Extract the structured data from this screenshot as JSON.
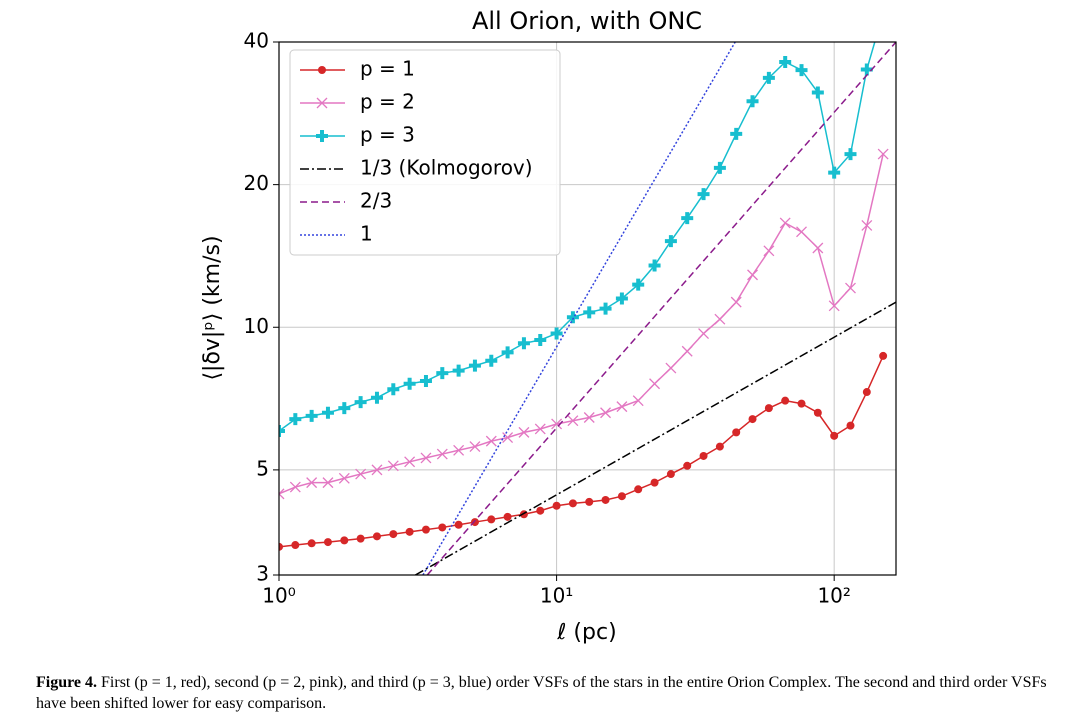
{
  "chart_data": {
    "type": "line",
    "title": "All Orion, with ONC",
    "xlabel": "ℓ (pc)",
    "ylabel": "⟨|δv|ᵖ⟩ (km/s)",
    "xscale": "log",
    "yscale": "log",
    "grid": true,
    "legend": "upper left",
    "xlim": [
      1,
      167
    ],
    "ylim": [
      3,
      40
    ],
    "xticks": [
      {
        "value": 1,
        "label": "10⁰"
      },
      {
        "value": 10,
        "label": "10¹"
      },
      {
        "value": 100,
        "label": "10²"
      }
    ],
    "yticks": [
      3,
      5,
      10,
      20,
      40
    ],
    "series": [
      {
        "name": "p = 1",
        "color": "#d62728",
        "marker": "o",
        "linestyle": "solid",
        "x": [
          1.0,
          1.145,
          1.311,
          1.501,
          1.719,
          1.968,
          2.254,
          2.581,
          2.955,
          3.384,
          3.875,
          4.437,
          5.08,
          5.818,
          6.661,
          7.627,
          8.733,
          10.0,
          11.45,
          13.11,
          15.01,
          17.19,
          19.68,
          22.54,
          25.81,
          29.55,
          33.84,
          38.75,
          44.37,
          50.8,
          58.18,
          66.61,
          76.27,
          87.33,
          100,
          114.5,
          131.1,
          150.1
        ],
        "values": [
          3.44,
          3.47,
          3.5,
          3.52,
          3.55,
          3.58,
          3.62,
          3.66,
          3.7,
          3.74,
          3.78,
          3.83,
          3.88,
          3.93,
          3.98,
          4.03,
          4.1,
          4.2,
          4.25,
          4.28,
          4.32,
          4.4,
          4.55,
          4.7,
          4.9,
          5.1,
          5.35,
          5.6,
          6.0,
          6.4,
          6.75,
          7.0,
          6.9,
          6.6,
          5.9,
          6.2,
          7.3,
          8.7
        ]
      },
      {
        "name": "p = 2",
        "color": "#e377c2",
        "marker": "x",
        "linestyle": "solid",
        "x": [
          1.0,
          1.145,
          1.311,
          1.501,
          1.719,
          1.968,
          2.254,
          2.581,
          2.955,
          3.384,
          3.875,
          4.437,
          5.08,
          5.818,
          6.661,
          7.627,
          8.733,
          10.0,
          11.45,
          13.11,
          15.01,
          17.19,
          19.68,
          22.54,
          25.81,
          29.55,
          33.84,
          38.75,
          44.37,
          50.8,
          58.18,
          66.61,
          76.27,
          87.33,
          100,
          114.5,
          131.1,
          150.1
        ],
        "values": [
          4.45,
          4.6,
          4.7,
          4.7,
          4.8,
          4.9,
          5.0,
          5.1,
          5.2,
          5.3,
          5.4,
          5.5,
          5.6,
          5.75,
          5.85,
          6.0,
          6.1,
          6.25,
          6.35,
          6.45,
          6.6,
          6.8,
          7.0,
          7.6,
          8.2,
          8.9,
          9.7,
          10.4,
          11.3,
          12.9,
          14.5,
          16.6,
          15.9,
          14.7,
          11.1,
          12.1,
          16.4,
          23.2
        ]
      },
      {
        "name": "p = 3",
        "color": "#17becf",
        "marker": "P",
        "linestyle": "solid",
        "x": [
          1.0,
          1.145,
          1.311,
          1.501,
          1.719,
          1.968,
          2.254,
          2.581,
          2.955,
          3.384,
          3.875,
          4.437,
          5.08,
          5.818,
          6.661,
          7.627,
          8.733,
          10.0,
          11.45,
          13.11,
          15.01,
          17.19,
          19.68,
          22.54,
          25.81,
          29.55,
          33.84,
          38.75,
          44.37,
          50.8,
          58.18,
          66.61,
          76.27,
          87.33,
          100,
          114.5,
          131.1,
          150.1
        ],
        "values": [
          6.04,
          6.4,
          6.5,
          6.6,
          6.75,
          6.95,
          7.1,
          7.4,
          7.6,
          7.7,
          8.0,
          8.1,
          8.3,
          8.5,
          8.85,
          9.25,
          9.4,
          9.7,
          10.5,
          10.75,
          10.95,
          11.5,
          12.3,
          13.5,
          15.2,
          17.0,
          19.1,
          21.7,
          25.6,
          30.0,
          33.6,
          36.3,
          34.9,
          31.3,
          21.2,
          23.2,
          35.0,
          46
        ]
      },
      {
        "name": "1/3 (Kolmogorov)",
        "color": "#000000",
        "linestyle": "dashdot",
        "x": [
          3.1,
          167
        ],
        "values": [
          3.0,
          11.3
        ]
      },
      {
        "name": "2/3",
        "color": "#8b1a8b",
        "linestyle": "dashed",
        "x": [
          3.42,
          167
        ],
        "values": [
          3.0,
          40
        ]
      },
      {
        "name": "1",
        "color": "#3344dd",
        "linestyle": "dotted",
        "x": [
          3.3,
          44
        ],
        "values": [
          3.0,
          40
        ]
      }
    ]
  },
  "caption": {
    "label": "Figure 4.",
    "text": "First (p = 1, red), second (p = 2, pink), and third (p = 3, blue) order VSFs of the stars in the entire Orion Complex. The second and third order VSFs have been shifted lower for easy comparison."
  }
}
